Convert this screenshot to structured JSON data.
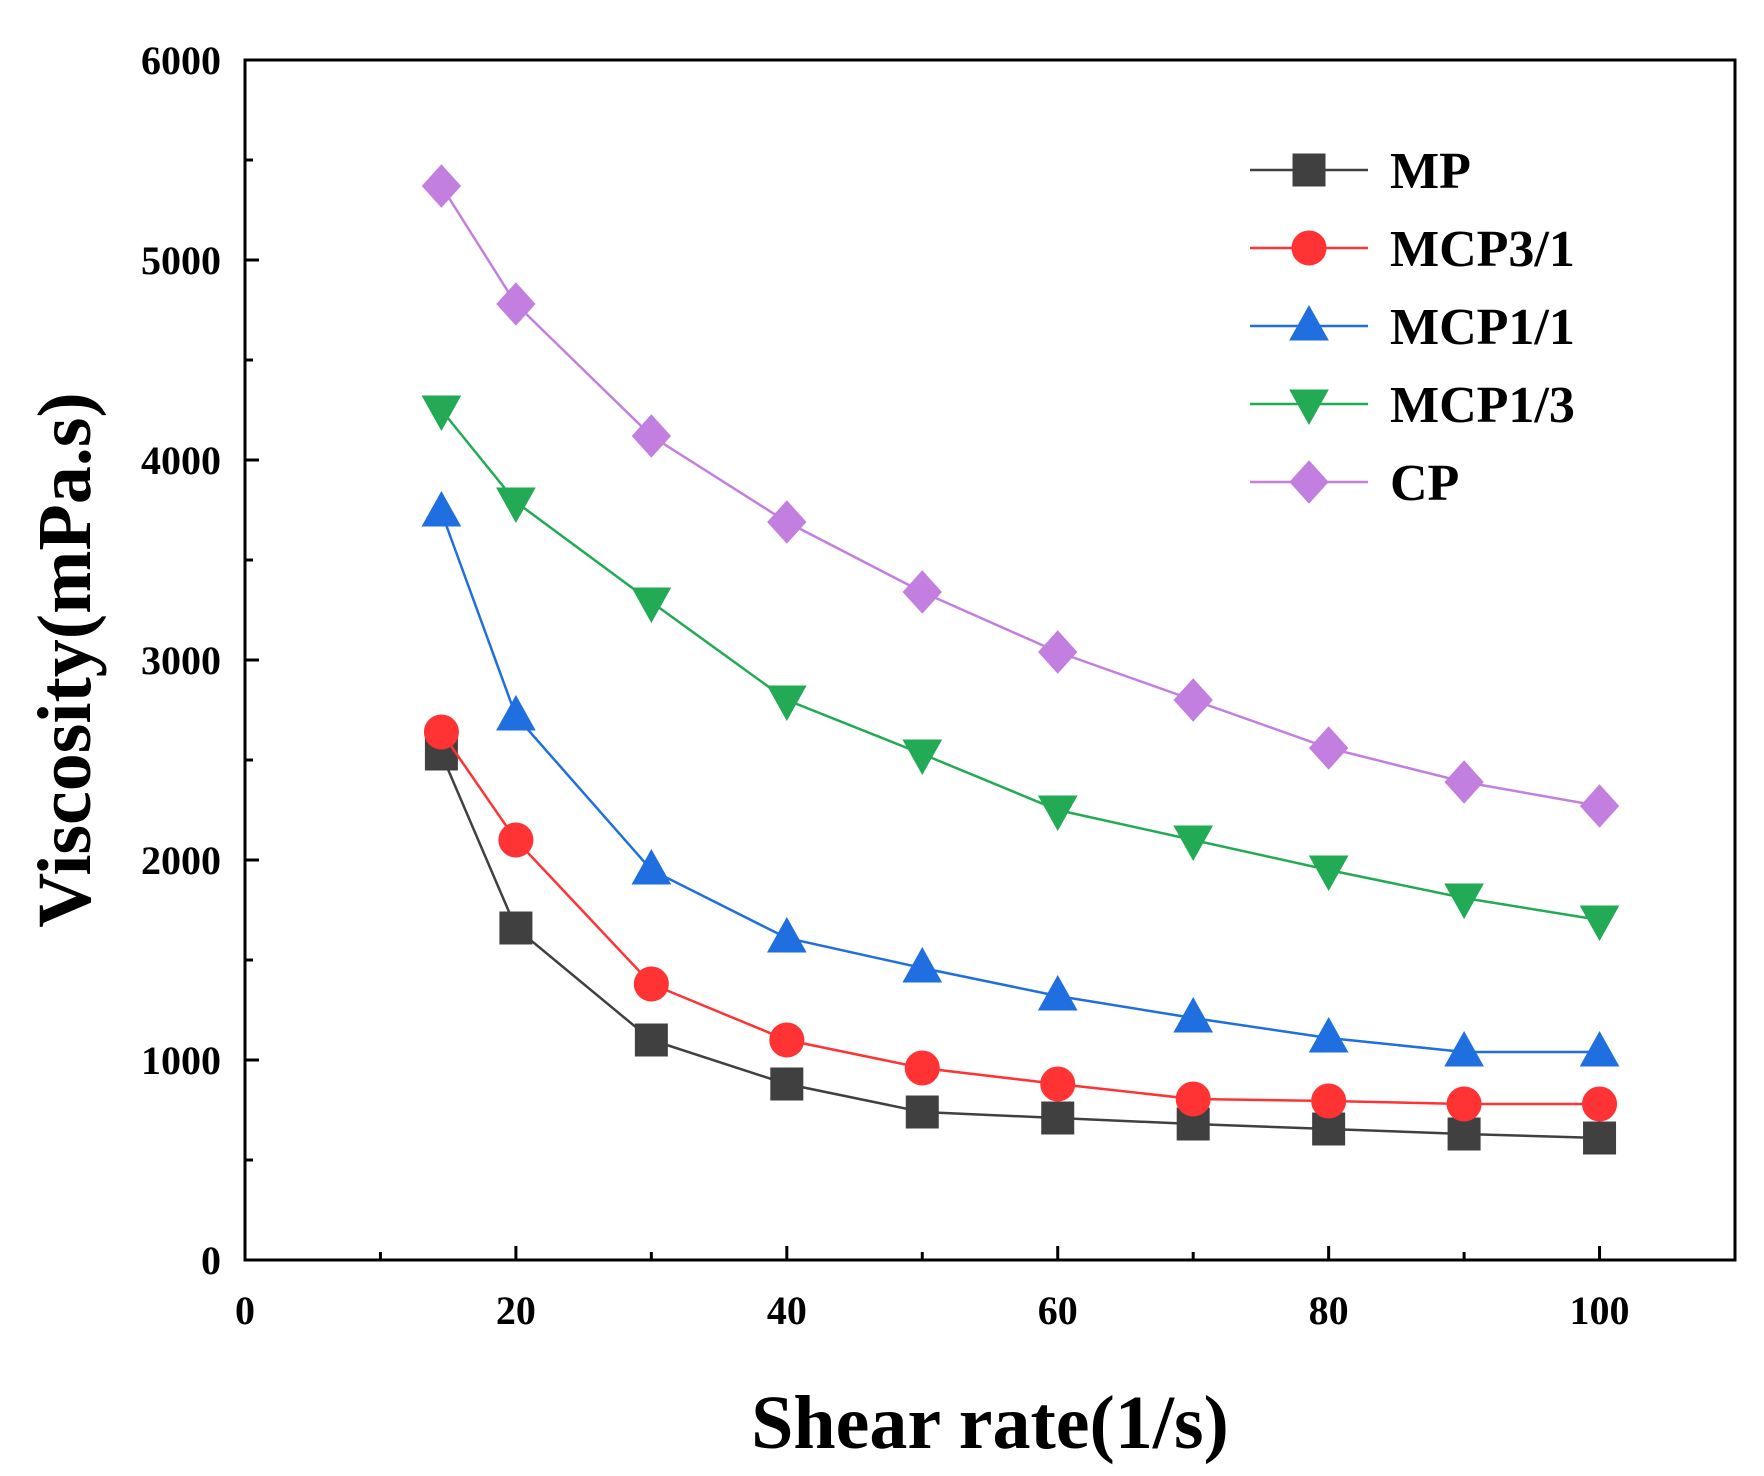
{
  "chart_data": {
    "type": "line",
    "title": "",
    "xlabel": "Shear rate(1/s)",
    "ylabel": "Viscosity(mPa.s)",
    "xlim": [
      0,
      110
    ],
    "ylim": [
      0,
      6000
    ],
    "x_ticks": [
      0,
      20,
      40,
      60,
      80,
      100
    ],
    "x_tick_labels": [
      "0",
      "20",
      "40",
      "60",
      "80",
      "100"
    ],
    "y_ticks": [
      0,
      1000,
      2000,
      3000,
      4000,
      5000,
      6000
    ],
    "y_tick_labels": [
      "0",
      "1000",
      "2000",
      "3000",
      "4000",
      "5000",
      "6000"
    ],
    "grid": false,
    "legend_position": "top-right",
    "x": [
      14.5,
      20,
      30,
      40,
      50,
      60,
      70,
      80,
      90,
      100
    ],
    "series": [
      {
        "name": "MP",
        "marker": "square",
        "color": "#404040",
        "values": [
          2530,
          1660,
          1100,
          880,
          740,
          710,
          680,
          655,
          630,
          610
        ]
      },
      {
        "name": "MCP3/1",
        "marker": "circle",
        "color": "#ff3333",
        "values": [
          2640,
          2100,
          1380,
          1100,
          960,
          880,
          805,
          795,
          780,
          780
        ]
      },
      {
        "name": "MCP1/1",
        "marker": "triangle-up",
        "color": "#1f6fe0",
        "values": [
          3740,
          2720,
          1950,
          1610,
          1460,
          1320,
          1210,
          1110,
          1040,
          1040
        ]
      },
      {
        "name": "MCP1/3",
        "marker": "triangle-down",
        "color": "#22aa55",
        "values": [
          4250,
          3790,
          3290,
          2800,
          2530,
          2250,
          2100,
          1950,
          1810,
          1700
        ]
      },
      {
        "name": "CP",
        "marker": "diamond",
        "color": "#c27fe0",
        "values": [
          5370,
          4780,
          4120,
          3690,
          3340,
          3040,
          2800,
          2560,
          2390,
          2270
        ]
      }
    ]
  }
}
